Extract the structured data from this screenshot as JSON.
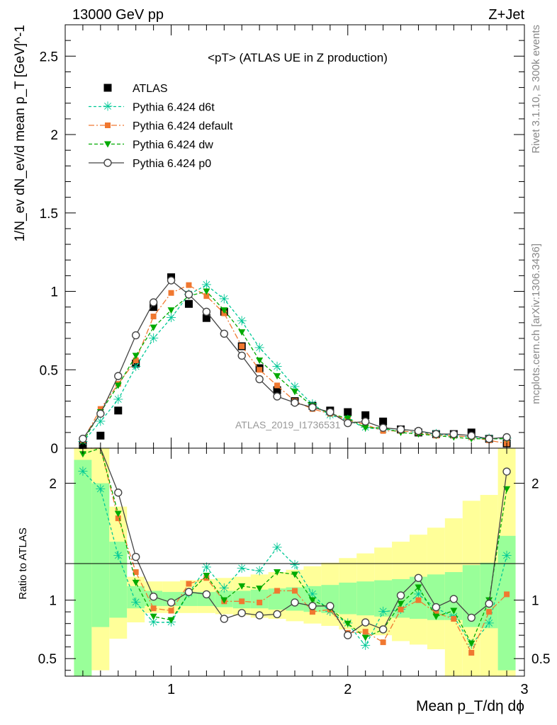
{
  "header": {
    "left": "13000 GeV pp",
    "right": "Z+Jet"
  },
  "side_text": {
    "version": "Rivet 3.1.10, ≥ 300k events",
    "site": "mcplots.cern.ch [arXiv:1306.3436]"
  },
  "chart_data": [
    {
      "type": "scatter",
      "title": "<pT> (ATLAS UE in Z production)",
      "ylabel": "1/N_ev dN_ev/d mean p_T [GeV]^-1",
      "xlim": [
        0.4,
        3.0
      ],
      "ylim": [
        0,
        2.7
      ],
      "yticks": [
        "0",
        "0.5",
        "1",
        "1.5",
        "2",
        "2.5"
      ],
      "watermark": "ATLAS_2019_I1736531",
      "x": [
        0.5,
        0.6,
        0.7,
        0.8,
        0.9,
        1.0,
        1.1,
        1.2,
        1.3,
        1.4,
        1.5,
        1.6,
        1.7,
        1.8,
        1.9,
        2.0,
        2.1,
        2.2,
        2.3,
        2.4,
        2.5,
        2.6,
        2.7,
        2.8,
        2.9
      ],
      "series": [
        {
          "name": "ATLAS",
          "color": "#000000",
          "marker": "square",
          "values": [
            0.02,
            0.08,
            0.24,
            0.54,
            0.9,
            1.09,
            0.92,
            0.83,
            0.87,
            0.65,
            0.51,
            0.37,
            0.3,
            0.27,
            0.24,
            0.23,
            0.21,
            0.17,
            0.12,
            0.1,
            0.09,
            0.09,
            0.1,
            0.06,
            0.03
          ]
        },
        {
          "name": "Pythia 6.424 d6t",
          "color": "#00c896",
          "marker": "star",
          "dash": "4,3",
          "values": [
            0.04,
            0.17,
            0.31,
            0.52,
            0.7,
            0.83,
            0.98,
            1.04,
            0.95,
            0.81,
            0.64,
            0.52,
            0.39,
            0.28,
            0.21,
            0.18,
            0.13,
            0.12,
            0.11,
            0.1,
            0.09,
            0.08,
            0.07,
            0.06,
            0.06
          ]
        },
        {
          "name": "Pythia 6.424 default",
          "color": "#f07830",
          "marker": "square-small",
          "dash": "8,3,2,3",
          "values": [
            0.05,
            0.25,
            0.41,
            0.56,
            0.84,
            0.99,
            1.04,
            0.97,
            0.86,
            0.65,
            0.5,
            0.4,
            0.3,
            0.25,
            0.22,
            0.18,
            0.15,
            0.11,
            0.11,
            0.1,
            0.08,
            0.08,
            0.07,
            0.05,
            0.03
          ]
        },
        {
          "name": "Pythia 6.424 dw",
          "color": "#00aa00",
          "marker": "triangle-down",
          "dash": "5,3",
          "values": [
            0.04,
            0.23,
            0.4,
            0.59,
            0.77,
            0.88,
            0.97,
            1.0,
            0.88,
            0.74,
            0.56,
            0.46,
            0.36,
            0.27,
            0.22,
            0.19,
            0.13,
            0.13,
            0.1,
            0.09,
            0.08,
            0.07,
            0.06,
            0.06,
            0.06
          ]
        },
        {
          "name": "Pythia 6.424 p0",
          "color": "#444444",
          "marker": "circle-open",
          "dash": "",
          "values": [
            0.06,
            0.22,
            0.46,
            0.72,
            0.93,
            1.07,
            0.98,
            0.87,
            0.73,
            0.59,
            0.44,
            0.33,
            0.29,
            0.26,
            0.23,
            0.16,
            0.17,
            0.13,
            0.12,
            0.11,
            0.09,
            0.09,
            0.08,
            0.06,
            0.07
          ]
        }
      ]
    },
    {
      "type": "scatter",
      "ylabel": "Ratio to ATLAS",
      "xlabel": "Mean p_T/dη dϕ",
      "xlim": [
        0.4,
        3.0
      ],
      "ylim": [
        0.35,
        2.3
      ],
      "yticks": [
        "0.5",
        "1",
        "2"
      ],
      "xticks": [
        "1",
        "2",
        "3"
      ],
      "band_edges": [
        0.45,
        0.55,
        0.65,
        0.75,
        0.85,
        0.95,
        1.05,
        1.15,
        1.25,
        1.35,
        1.45,
        1.55,
        1.65,
        1.75,
        1.85,
        1.95,
        2.05,
        2.15,
        2.25,
        2.35,
        2.45,
        2.55,
        2.65,
        2.75,
        2.85,
        2.95
      ],
      "band_inner_lo": [
        0.35,
        0.77,
        0.85,
        0.93,
        0.95,
        0.95,
        0.95,
        0.95,
        0.94,
        0.93,
        0.93,
        0.92,
        0.91,
        0.9,
        0.89,
        0.88,
        0.87,
        0.86,
        0.85,
        0.84,
        0.83,
        0.83,
        0.77,
        0.76,
        0.4
      ],
      "band_inner_hi": [
        2.2,
        2.0,
        1.5,
        1.12,
        1.08,
        1.07,
        1.07,
        1.07,
        1.08,
        1.08,
        1.09,
        1.1,
        1.11,
        1.12,
        1.13,
        1.15,
        1.16,
        1.17,
        1.18,
        1.2,
        1.22,
        1.24,
        1.3,
        1.32,
        1.55
      ],
      "band_outer_lo": [
        0.35,
        0.4,
        0.67,
        0.81,
        0.89,
        0.89,
        0.89,
        0.89,
        0.88,
        0.87,
        0.85,
        0.84,
        0.82,
        0.8,
        0.78,
        0.75,
        0.72,
        0.7,
        0.65,
        0.62,
        0.58,
        0.35,
        0.35,
        0.35,
        0.35
      ],
      "band_outer_hi": [
        2.3,
        2.3,
        1.8,
        1.2,
        1.16,
        1.16,
        1.17,
        1.18,
        1.19,
        1.2,
        1.22,
        1.24,
        1.26,
        1.29,
        1.32,
        1.36,
        1.4,
        1.45,
        1.5,
        1.56,
        1.62,
        1.7,
        1.85,
        1.9,
        2.3
      ],
      "series": [
        {
          "name": "Pythia 6.424 d6t",
          "color": "#00c896",
          "marker": "star",
          "dash": "4,3",
          "values": [
            2.1,
            1.95,
            1.38,
            0.98,
            0.81,
            0.81,
            1.06,
            1.28,
            1.1,
            1.27,
            1.25,
            1.45,
            1.3,
            1.05,
            0.9,
            0.8,
            0.61,
            0.9,
            0.92,
            1.05,
            0.93,
            0.86,
            0.62,
            0.8,
            1.38
          ]
        },
        {
          "name": "Pythia 6.424 default",
          "color": "#f07830",
          "marker": "square-small",
          "dash": "8,3,2,3",
          "values": [
            2.3,
            2.3,
            1.7,
            1.24,
            0.93,
            0.91,
            1.14,
            1.19,
            0.99,
            0.99,
            0.98,
            1.08,
            1.08,
            0.9,
            0.92,
            0.72,
            0.73,
            0.64,
            0.92,
            1.0,
            0.89,
            0.84,
            0.55,
            0.9,
            1.05
          ]
        },
        {
          "name": "Pythia 6.424 dw",
          "color": "#00aa00",
          "marker": "triangle-down",
          "dash": "5,3",
          "values": [
            2.25,
            2.3,
            1.74,
            1.15,
            0.86,
            0.83,
            1.06,
            1.21,
            1.0,
            1.12,
            1.1,
            1.24,
            1.22,
            1.0,
            0.93,
            0.8,
            0.68,
            0.75,
            0.97,
            1.11,
            0.86,
            0.91,
            0.63,
            1.0,
            1.95
          ]
        },
        {
          "name": "Pythia 6.424 p0",
          "color": "#444444",
          "marker": "circle-open",
          "dash": "",
          "values": [
            2.3,
            2.3,
            1.92,
            1.37,
            1.03,
            0.98,
            1.07,
            1.05,
            0.84,
            0.89,
            0.87,
            0.88,
            0.98,
            0.95,
            0.95,
            0.7,
            0.81,
            0.75,
            1.04,
            1.19,
            0.94,
            1.01,
            0.85,
            0.97,
            2.1
          ]
        }
      ]
    }
  ]
}
